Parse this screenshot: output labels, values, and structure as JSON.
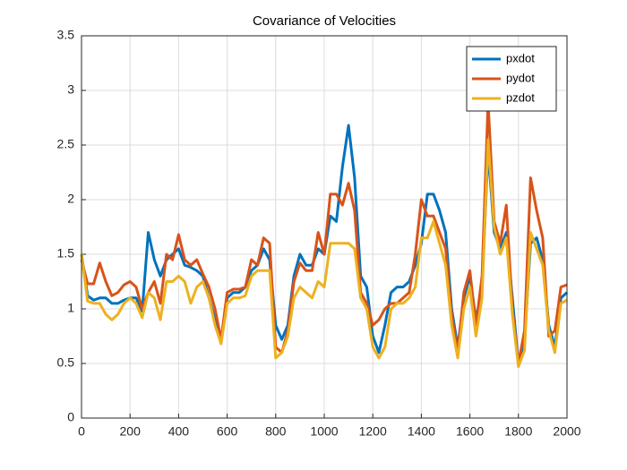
{
  "chart_data": {
    "type": "line",
    "title": "Covariance of Velocities",
    "x": [
      0,
      25,
      50,
      75,
      100,
      125,
      150,
      175,
      200,
      225,
      250,
      275,
      300,
      325,
      350,
      375,
      400,
      425,
      450,
      475,
      500,
      525,
      550,
      575,
      600,
      625,
      650,
      675,
      700,
      725,
      750,
      775,
      800,
      825,
      850,
      875,
      900,
      925,
      950,
      975,
      1000,
      1025,
      1050,
      1075,
      1100,
      1125,
      1150,
      1175,
      1200,
      1225,
      1250,
      1275,
      1300,
      1325,
      1350,
      1375,
      1400,
      1425,
      1450,
      1475,
      1500,
      1525,
      1550,
      1575,
      1600,
      1625,
      1650,
      1675,
      1700,
      1725,
      1750,
      1775,
      1800,
      1825,
      1850,
      1875,
      1900,
      1925,
      1950,
      1975,
      2000
    ],
    "series": [
      {
        "name": "pxdot",
        "color": "#0072bd",
        "values": [
          1.5,
          1.12,
          1.08,
          1.1,
          1.1,
          1.05,
          1.05,
          1.08,
          1.1,
          1.1,
          0.98,
          1.7,
          1.45,
          1.3,
          1.45,
          1.5,
          1.55,
          1.4,
          1.38,
          1.35,
          1.3,
          1.1,
          0.9,
          0.7,
          1.1,
          1.15,
          1.15,
          1.2,
          1.35,
          1.4,
          1.55,
          1.45,
          0.85,
          0.72,
          0.85,
          1.3,
          1.5,
          1.4,
          1.4,
          1.55,
          1.5,
          1.85,
          1.8,
          2.3,
          2.68,
          2.2,
          1.3,
          1.2,
          0.75,
          0.6,
          0.85,
          1.15,
          1.2,
          1.2,
          1.25,
          1.4,
          1.6,
          2.05,
          2.05,
          1.9,
          1.7,
          1.0,
          0.65,
          1.1,
          1.3,
          0.9,
          1.2,
          2.45,
          1.7,
          1.55,
          1.7,
          1.1,
          0.5,
          0.7,
          1.6,
          1.65,
          1.45,
          0.85,
          0.65,
          1.1,
          1.15
        ]
      },
      {
        "name": "pydot",
        "color": "#d95319",
        "values": [
          1.45,
          1.23,
          1.23,
          1.42,
          1.25,
          1.12,
          1.15,
          1.22,
          1.25,
          1.2,
          1.0,
          1.15,
          1.25,
          1.05,
          1.5,
          1.45,
          1.68,
          1.45,
          1.4,
          1.45,
          1.32,
          1.2,
          1.0,
          0.72,
          1.15,
          1.18,
          1.18,
          1.2,
          1.45,
          1.4,
          1.65,
          1.6,
          0.65,
          0.6,
          0.8,
          1.25,
          1.42,
          1.35,
          1.35,
          1.7,
          1.5,
          2.05,
          2.05,
          1.95,
          2.15,
          1.9,
          1.15,
          1.05,
          0.85,
          0.9,
          1.0,
          1.05,
          1.05,
          1.1,
          1.15,
          1.5,
          2.0,
          1.85,
          1.85,
          1.7,
          1.55,
          0.95,
          0.6,
          1.15,
          1.35,
          0.85,
          1.3,
          2.9,
          1.8,
          1.6,
          1.95,
          1.0,
          0.5,
          0.8,
          2.2,
          1.9,
          1.65,
          0.75,
          0.8,
          1.2,
          1.22
        ]
      },
      {
        "name": "pzdot",
        "color": "#edb120",
        "values": [
          1.5,
          1.07,
          1.05,
          1.05,
          0.95,
          0.9,
          0.95,
          1.05,
          1.1,
          1.05,
          0.92,
          1.15,
          1.1,
          0.9,
          1.25,
          1.25,
          1.3,
          1.25,
          1.05,
          1.2,
          1.25,
          1.1,
          0.85,
          0.68,
          1.05,
          1.1,
          1.1,
          1.12,
          1.3,
          1.35,
          1.35,
          1.35,
          0.55,
          0.6,
          0.75,
          1.1,
          1.2,
          1.15,
          1.1,
          1.25,
          1.2,
          1.6,
          1.6,
          1.6,
          1.6,
          1.55,
          1.1,
          1.0,
          0.65,
          0.55,
          0.65,
          1.0,
          1.05,
          1.05,
          1.1,
          1.2,
          1.65,
          1.65,
          1.8,
          1.6,
          1.4,
          0.85,
          0.55,
          1.0,
          1.2,
          0.75,
          1.1,
          2.55,
          1.75,
          1.5,
          1.65,
          0.95,
          0.47,
          0.62,
          1.7,
          1.55,
          1.4,
          0.8,
          0.6,
          1.05,
          1.08
        ]
      }
    ],
    "xlim": [
      0,
      2000
    ],
    "xticks": [
      0,
      200,
      400,
      600,
      800,
      1000,
      1200,
      1400,
      1600,
      1800,
      2000
    ],
    "ylim": [
      0,
      3.5
    ],
    "yticks": [
      0,
      0.5,
      1,
      1.5,
      2,
      2.5,
      3,
      3.5
    ],
    "grid": true,
    "legend": "northeast"
  }
}
